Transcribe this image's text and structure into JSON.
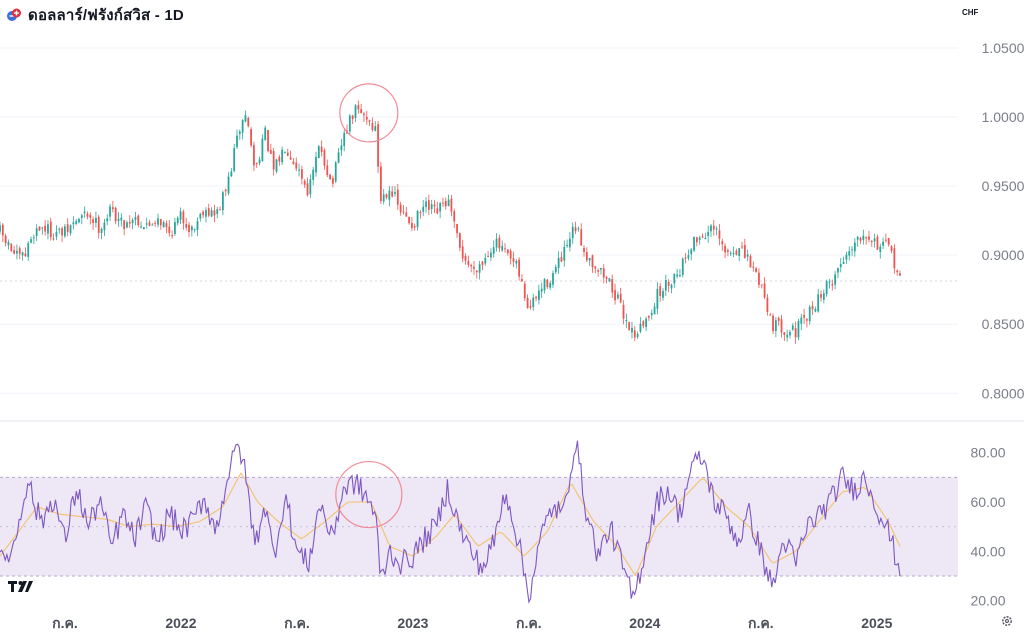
{
  "header": {
    "title": "ดอลลาร์/ฟรังก์สวิส - 1D",
    "currency": "CHF"
  },
  "colors": {
    "up": "#26a69a",
    "down": "#ef5350",
    "rsi": "#7e57c2",
    "rsi_ma": "#f5c26b",
    "band": "#ede7f6",
    "annotation": "#f28b96"
  },
  "icons": {
    "flag": "flag-icon",
    "logo": "tradingview-logo-icon",
    "settings": "gear-icon"
  },
  "chart_data": [
    {
      "type": "candlestick",
      "title": "ดอลลาร์/ฟรังก์สวิส - 1D",
      "y_ticks": [
        "1.0500",
        "1.0000",
        "0.9500",
        "0.9000",
        "0.8500",
        "0.8000"
      ],
      "y_tick_values": [
        1.05,
        1.0,
        0.95,
        0.9,
        0.85,
        0.8
      ],
      "ylim": [
        0.785,
        1.063
      ],
      "x_ticks": [
        "ก.ค.",
        "2022",
        "ก.ค.",
        "2023",
        "ก.ค.",
        "2024",
        "ก.ค.",
        "2025"
      ],
      "x_tick_times": [
        2021.5,
        2022.0,
        2022.5,
        2023.0,
        2023.5,
        2024.0,
        2024.5,
        2025.0
      ],
      "xlim": [
        2021.22,
        2025.35
      ],
      "close_path": [
        [
          2021.22,
          0.917
        ],
        [
          2021.25,
          0.908
        ],
        [
          2021.3,
          0.897
        ],
        [
          2021.33,
          0.9
        ],
        [
          2021.36,
          0.916
        ],
        [
          2021.4,
          0.921
        ],
        [
          2021.45,
          0.916
        ],
        [
          2021.5,
          0.916
        ],
        [
          2021.55,
          0.925
        ],
        [
          2021.6,
          0.93
        ],
        [
          2021.65,
          0.92
        ],
        [
          2021.7,
          0.933
        ],
        [
          2021.75,
          0.922
        ],
        [
          2021.8,
          0.928
        ],
        [
          2021.85,
          0.92
        ],
        [
          2021.9,
          0.928
        ],
        [
          2021.95,
          0.916
        ],
        [
          2022.0,
          0.928
        ],
        [
          2022.05,
          0.918
        ],
        [
          2022.1,
          0.935
        ],
        [
          2022.15,
          0.928
        ],
        [
          2022.2,
          0.95
        ],
        [
          2022.25,
          0.99
        ],
        [
          2022.28,
          1.003
        ],
        [
          2022.32,
          0.96
        ],
        [
          2022.36,
          0.99
        ],
        [
          2022.4,
          0.96
        ],
        [
          2022.45,
          0.98
        ],
        [
          2022.5,
          0.965
        ],
        [
          2022.55,
          0.946
        ],
        [
          2022.6,
          0.98
        ],
        [
          2022.65,
          0.95
        ],
        [
          2022.7,
          0.985
        ],
        [
          2022.75,
          1.005
        ],
        [
          2022.8,
          1.0
        ],
        [
          2022.84,
          0.99
        ],
        [
          2022.86,
          0.94
        ],
        [
          2022.9,
          0.95
        ],
        [
          2022.95,
          0.93
        ],
        [
          2023.0,
          0.922
        ],
        [
          2023.05,
          0.935
        ],
        [
          2023.1,
          0.93
        ],
        [
          2023.15,
          0.94
        ],
        [
          2023.2,
          0.905
        ],
        [
          2023.25,
          0.89
        ],
        [
          2023.3,
          0.895
        ],
        [
          2023.35,
          0.91
        ],
        [
          2023.4,
          0.9
        ],
        [
          2023.45,
          0.89
        ],
        [
          2023.5,
          0.86
        ],
        [
          2023.55,
          0.875
        ],
        [
          2023.6,
          0.885
        ],
        [
          2023.65,
          0.9
        ],
        [
          2023.7,
          0.92
        ],
        [
          2023.75,
          0.9
        ],
        [
          2023.8,
          0.89
        ],
        [
          2023.85,
          0.88
        ],
        [
          2023.9,
          0.86
        ],
        [
          2023.95,
          0.843
        ],
        [
          2024.0,
          0.85
        ],
        [
          2024.05,
          0.87
        ],
        [
          2024.1,
          0.88
        ],
        [
          2024.15,
          0.89
        ],
        [
          2024.2,
          0.908
        ],
        [
          2024.25,
          0.915
        ],
        [
          2024.3,
          0.918
        ],
        [
          2024.35,
          0.9
        ],
        [
          2024.4,
          0.905
        ],
        [
          2024.45,
          0.895
        ],
        [
          2024.5,
          0.88
        ],
        [
          2024.55,
          0.85
        ],
        [
          2024.6,
          0.847
        ],
        [
          2024.65,
          0.845
        ],
        [
          2024.7,
          0.855
        ],
        [
          2024.75,
          0.87
        ],
        [
          2024.8,
          0.88
        ],
        [
          2024.85,
          0.895
        ],
        [
          2024.9,
          0.91
        ],
        [
          2024.95,
          0.918
        ],
        [
          2025.0,
          0.908
        ],
        [
          2025.05,
          0.905
        ],
        [
          2025.1,
          0.885
        ]
      ],
      "annotation_circle": {
        "x": 2022.81,
        "y": 1.003
      }
    },
    {
      "type": "line",
      "title": "RSI",
      "y_ticks": [
        "80.00",
        "60.00",
        "40.00",
        "20.00"
      ],
      "y_tick_values": [
        80,
        60,
        40,
        20
      ],
      "ylim": [
        17,
        90
      ],
      "band": [
        30,
        70
      ],
      "midline": 50,
      "xlim": [
        2021.22,
        2025.35
      ],
      "series": [
        {
          "key": "rsi",
          "values": [
            [
              2021.22,
              35
            ],
            [
              2021.28,
              42
            ],
            [
              2021.34,
              70
            ],
            [
              2021.37,
              58
            ],
            [
              2021.4,
              52
            ],
            [
              2021.45,
              62
            ],
            [
              2021.5,
              44
            ],
            [
              2021.55,
              66
            ],
            [
              2021.6,
              50
            ],
            [
              2021.65,
              61
            ],
            [
              2021.7,
              42
            ],
            [
              2021.75,
              55
            ],
            [
              2021.8,
              45
            ],
            [
              2021.85,
              58
            ],
            [
              2021.9,
              43
            ],
            [
              2021.95,
              56
            ],
            [
              2022.0,
              48
            ],
            [
              2022.05,
              52
            ],
            [
              2022.1,
              62
            ],
            [
              2022.15,
              48
            ],
            [
              2022.2,
              70
            ],
            [
              2022.25,
              84
            ],
            [
              2022.28,
              70
            ],
            [
              2022.32,
              42
            ],
            [
              2022.36,
              60
            ],
            [
              2022.4,
              38
            ],
            [
              2022.45,
              63
            ],
            [
              2022.5,
              40
            ],
            [
              2022.55,
              35
            ],
            [
              2022.6,
              60
            ],
            [
              2022.65,
              45
            ],
            [
              2022.7,
              65
            ],
            [
              2022.75,
              68
            ],
            [
              2022.8,
              62
            ],
            [
              2022.84,
              55
            ],
            [
              2022.86,
              28
            ],
            [
              2022.9,
              40
            ],
            [
              2022.95,
              35
            ],
            [
              2023.0,
              38
            ],
            [
              2023.05,
              45
            ],
            [
              2023.1,
              50
            ],
            [
              2023.15,
              66
            ],
            [
              2023.2,
              50
            ],
            [
              2023.25,
              40
            ],
            [
              2023.3,
              33
            ],
            [
              2023.35,
              44
            ],
            [
              2023.4,
              65
            ],
            [
              2023.45,
              46
            ],
            [
              2023.5,
              22
            ],
            [
              2023.55,
              45
            ],
            [
              2023.6,
              58
            ],
            [
              2023.65,
              55
            ],
            [
              2023.7,
              86
            ],
            [
              2023.75,
              55
            ],
            [
              2023.8,
              38
            ],
            [
              2023.85,
              50
            ],
            [
              2023.9,
              35
            ],
            [
              2023.95,
              20
            ],
            [
              2024.0,
              40
            ],
            [
              2024.05,
              60
            ],
            [
              2024.1,
              65
            ],
            [
              2024.15,
              55
            ],
            [
              2024.2,
              74
            ],
            [
              2024.25,
              78
            ],
            [
              2024.3,
              60
            ],
            [
              2024.35,
              55
            ],
            [
              2024.4,
              44
            ],
            [
              2024.45,
              55
            ],
            [
              2024.5,
              40
            ],
            [
              2024.55,
              25
            ],
            [
              2024.6,
              45
            ],
            [
              2024.65,
              35
            ],
            [
              2024.7,
              50
            ],
            [
              2024.75,
              55
            ],
            [
              2024.8,
              60
            ],
            [
              2024.85,
              70
            ],
            [
              2024.9,
              65
            ],
            [
              2024.95,
              70
            ],
            [
              2025.0,
              58
            ],
            [
              2025.05,
              48
            ],
            [
              2025.1,
              32
            ]
          ]
        },
        {
          "key": "rsi_ma",
          "values": [
            [
              2021.22,
              38
            ],
            [
              2021.3,
              48
            ],
            [
              2021.38,
              58
            ],
            [
              2021.48,
              55
            ],
            [
              2021.58,
              54
            ],
            [
              2021.68,
              53
            ],
            [
              2021.78,
              50
            ],
            [
              2021.88,
              51
            ],
            [
              2021.98,
              50
            ],
            [
              2022.08,
              52
            ],
            [
              2022.18,
              58
            ],
            [
              2022.26,
              72
            ],
            [
              2022.33,
              60
            ],
            [
              2022.42,
              52
            ],
            [
              2022.52,
              45
            ],
            [
              2022.62,
              52
            ],
            [
              2022.72,
              60
            ],
            [
              2022.82,
              60
            ],
            [
              2022.9,
              42
            ],
            [
              2023.0,
              38
            ],
            [
              2023.1,
              46
            ],
            [
              2023.18,
              55
            ],
            [
              2023.28,
              42
            ],
            [
              2023.38,
              48
            ],
            [
              2023.48,
              38
            ],
            [
              2023.58,
              48
            ],
            [
              2023.68,
              68
            ],
            [
              2023.78,
              52
            ],
            [
              2023.88,
              42
            ],
            [
              2023.96,
              30
            ],
            [
              2024.05,
              50
            ],
            [
              2024.15,
              60
            ],
            [
              2024.25,
              70
            ],
            [
              2024.35,
              58
            ],
            [
              2024.45,
              50
            ],
            [
              2024.55,
              35
            ],
            [
              2024.65,
              40
            ],
            [
              2024.75,
              52
            ],
            [
              2024.85,
              64
            ],
            [
              2024.95,
              66
            ],
            [
              2025.05,
              52
            ],
            [
              2025.1,
              42
            ]
          ]
        }
      ],
      "annotation_circle": {
        "x": 2022.81,
        "y": 63
      }
    }
  ]
}
